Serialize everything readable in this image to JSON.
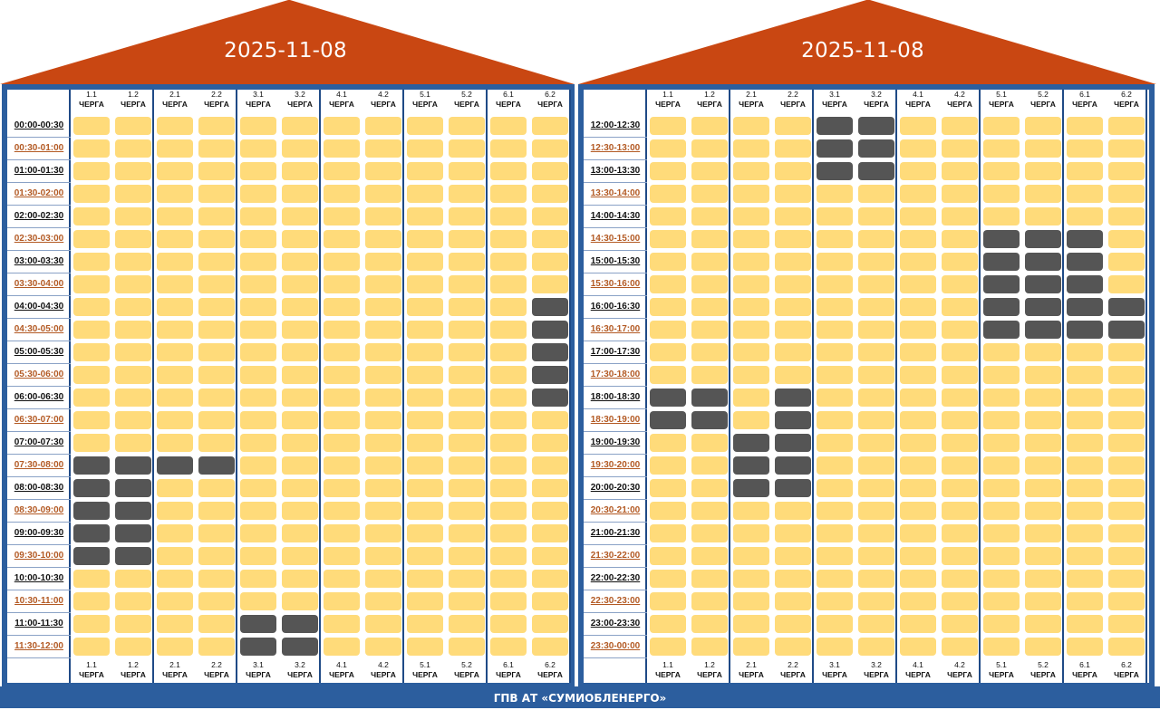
{
  "colors": {
    "roof": "#c94712",
    "frame": "#2c5e9e",
    "available": "#ffdb7a",
    "outage": "#555555",
    "odd_time": "#b35a24"
  },
  "queue_word": "ЧЕРГА",
  "queues": [
    "1.1",
    "1.2",
    "2.1",
    "2.2",
    "3.1",
    "3.2",
    "4.1",
    "4.2",
    "5.1",
    "5.2",
    "6.1",
    "6.2"
  ],
  "footer": "ГПВ АТ «СУМИОБЛЕНЕРГО»",
  "panels": [
    {
      "date": "2025-11-08",
      "times": [
        "00:00-00:30",
        "00:30-01:00",
        "01:00-01:30",
        "01:30-02:00",
        "02:00-02:30",
        "02:30-03:00",
        "03:00-03:30",
        "03:30-04:00",
        "04:00-04:30",
        "04:30-05:00",
        "05:00-05:30",
        "05:30-06:00",
        "06:00-06:30",
        "06:30-07:00",
        "07:00-07:30",
        "07:30-08:00",
        "08:00-08:30",
        "08:30-09:00",
        "09:00-09:30",
        "09:30-10:00",
        "10:00-10:30",
        "10:30-11:00",
        "11:00-11:30",
        "11:30-12:00"
      ],
      "outages": {
        "1.1": [
          15,
          16,
          17,
          18,
          19
        ],
        "1.2": [
          15,
          16,
          17,
          18,
          19
        ],
        "2.1": [
          15
        ],
        "2.2": [
          15
        ],
        "3.1": [
          22,
          23
        ],
        "3.2": [
          22,
          23
        ],
        "6.2": [
          8,
          9,
          10,
          11,
          12
        ]
      }
    },
    {
      "date": "2025-11-08",
      "times": [
        "12:00-12:30",
        "12:30-13:00",
        "13:00-13:30",
        "13:30-14:00",
        "14:00-14:30",
        "14:30-15:00",
        "15:00-15:30",
        "15:30-16:00",
        "16:00-16:30",
        "16:30-17:00",
        "17:00-17:30",
        "17:30-18:00",
        "18:00-18:30",
        "18:30-19:00",
        "19:00-19:30",
        "19:30-20:00",
        "20:00-20:30",
        "20:30-21:00",
        "21:00-21:30",
        "21:30-22:00",
        "22:00-22:30",
        "22:30-23:00",
        "23:00-23:30",
        "23:30-00:00"
      ],
      "outages": {
        "1.1": [
          12,
          13
        ],
        "1.2": [
          12,
          13
        ],
        "2.1": [
          14,
          15,
          16
        ],
        "2.2": [
          12,
          13,
          14,
          15,
          16
        ],
        "3.1": [
          0,
          1,
          2
        ],
        "3.2": [
          0,
          1,
          2
        ],
        "5.1": [
          5,
          6,
          7,
          8,
          9
        ],
        "5.2": [
          5,
          6,
          7,
          8,
          9
        ],
        "6.1": [
          5,
          6,
          7,
          8,
          9
        ],
        "6.2": [
          8,
          9
        ]
      }
    }
  ]
}
